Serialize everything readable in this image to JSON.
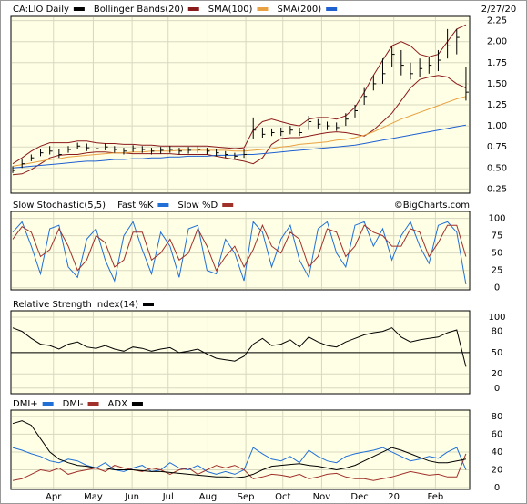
{
  "chart_data": [
    {
      "type": "ohlc",
      "title": "CA:LIO Daily",
      "color": "#000000",
      "date": "2/27/20",
      "high": [
        0.52,
        0.6,
        0.66,
        0.72,
        0.76,
        0.72,
        0.76,
        0.8,
        0.79,
        0.77,
        0.79,
        0.76,
        0.74,
        0.77,
        0.76,
        0.74,
        0.75,
        0.76,
        0.74,
        0.75,
        0.76,
        0.74,
        0.72,
        0.7,
        0.68,
        0.72,
        1.1,
        0.98,
        0.97,
        0.98,
        1.0,
        0.98,
        1.12,
        1.08,
        1.05,
        1.04,
        1.15,
        1.25,
        1.45,
        1.6,
        1.8,
        1.95,
        1.9,
        1.75,
        1.8,
        1.82,
        1.9,
        2.15,
        2.15,
        1.7
      ],
      "low": [
        0.44,
        0.5,
        0.58,
        0.64,
        0.66,
        0.62,
        0.68,
        0.72,
        0.7,
        0.69,
        0.71,
        0.68,
        0.66,
        0.69,
        0.68,
        0.66,
        0.67,
        0.68,
        0.66,
        0.67,
        0.68,
        0.66,
        0.64,
        0.62,
        0.6,
        0.62,
        0.85,
        0.86,
        0.88,
        0.88,
        0.9,
        0.88,
        0.95,
        0.97,
        0.95,
        0.94,
        1.0,
        1.1,
        1.25,
        1.42,
        1.5,
        1.7,
        1.6,
        1.55,
        1.58,
        1.62,
        1.65,
        1.8,
        1.85,
        1.3
      ],
      "close": [
        0.47,
        0.55,
        0.62,
        0.68,
        0.7,
        0.66,
        0.72,
        0.76,
        0.74,
        0.73,
        0.75,
        0.72,
        0.7,
        0.73,
        0.72,
        0.7,
        0.71,
        0.72,
        0.7,
        0.71,
        0.72,
        0.7,
        0.68,
        0.66,
        0.64,
        0.66,
        0.95,
        0.9,
        0.92,
        0.93,
        0.95,
        0.92,
        1.05,
        1.02,
        1.0,
        0.98,
        1.08,
        1.18,
        1.35,
        1.5,
        1.62,
        1.85,
        1.72,
        1.62,
        1.68,
        1.72,
        1.78,
        1.95,
        2.05,
        1.4
      ],
      "series": [
        {
          "name": "Bollinger Bands(20)",
          "color": "#8b1a1a",
          "upper": [
            0.55,
            0.62,
            0.7,
            0.76,
            0.8,
            0.8,
            0.8,
            0.82,
            0.82,
            0.8,
            0.79,
            0.79,
            0.78,
            0.78,
            0.77,
            0.77,
            0.76,
            0.76,
            0.76,
            0.76,
            0.76,
            0.76,
            0.75,
            0.74,
            0.73,
            0.74,
            0.95,
            1.05,
            1.08,
            1.05,
            1.02,
            1.0,
            1.08,
            1.1,
            1.1,
            1.08,
            1.12,
            1.22,
            1.4,
            1.6,
            1.78,
            1.95,
            2.0,
            1.95,
            1.85,
            1.82,
            1.85,
            2.0,
            2.15,
            2.2
          ],
          "lower": [
            0.42,
            0.43,
            0.48,
            0.55,
            0.62,
            0.65,
            0.66,
            0.66,
            0.68,
            0.69,
            0.69,
            0.68,
            0.68,
            0.67,
            0.67,
            0.67,
            0.67,
            0.67,
            0.66,
            0.66,
            0.66,
            0.66,
            0.64,
            0.62,
            0.6,
            0.58,
            0.55,
            0.62,
            0.78,
            0.85,
            0.86,
            0.86,
            0.88,
            0.9,
            0.92,
            0.93,
            0.92,
            0.9,
            0.88,
            0.95,
            1.05,
            1.15,
            1.3,
            1.45,
            1.55,
            1.58,
            1.6,
            1.58,
            1.5,
            1.45
          ]
        },
        {
          "name": "SMA(100)",
          "color": "#e8a040",
          "values": [
            0.52,
            0.54,
            0.56,
            0.58,
            0.6,
            0.61,
            0.63,
            0.64,
            0.65,
            0.66,
            0.67,
            0.68,
            0.68,
            0.69,
            0.69,
            0.7,
            0.7,
            0.7,
            0.71,
            0.71,
            0.71,
            0.71,
            0.71,
            0.71,
            0.7,
            0.7,
            0.71,
            0.72,
            0.73,
            0.75,
            0.76,
            0.78,
            0.79,
            0.8,
            0.81,
            0.83,
            0.84,
            0.86,
            0.89,
            0.93,
            0.98,
            1.03,
            1.08,
            1.12,
            1.16,
            1.2,
            1.24,
            1.28,
            1.32,
            1.35
          ]
        },
        {
          "name": "SMA(200)",
          "color": "#1f60d0",
          "values": [
            0.5,
            0.51,
            0.52,
            0.53,
            0.54,
            0.55,
            0.56,
            0.57,
            0.58,
            0.58,
            0.59,
            0.6,
            0.6,
            0.61,
            0.61,
            0.62,
            0.62,
            0.63,
            0.63,
            0.64,
            0.64,
            0.64,
            0.65,
            0.65,
            0.65,
            0.66,
            0.66,
            0.67,
            0.68,
            0.69,
            0.7,
            0.71,
            0.72,
            0.73,
            0.74,
            0.75,
            0.76,
            0.77,
            0.79,
            0.81,
            0.83,
            0.85,
            0.87,
            0.89,
            0.91,
            0.93,
            0.95,
            0.97,
            0.99,
            1.01
          ]
        }
      ],
      "xlim": [
        -0.2,
        49.4
      ],
      "xticks": [
        4.4,
        8.7,
        12.9,
        16.8,
        21.1,
        25.2,
        29.2,
        33.4,
        37.5,
        41.2,
        45.7
      ],
      "ylim": [
        0.2,
        2.3
      ],
      "yticks": [
        0.25,
        {
          "value": 0.5,
          "label": "0.50"
        },
        0.75,
        {
          "value": 1,
          "label": "1.00"
        },
        1.25,
        {
          "value": 1.5,
          "label": "1.50"
        },
        1.75,
        {
          "value": 2,
          "label": "2.00"
        },
        2.25
      ]
    },
    {
      "type": "line",
      "title": "Slow Stochastic(5,5)",
      "source": "©BigCharts.com",
      "series": [
        {
          "name": "Fast %K",
          "color": "#1f6fd6",
          "values": [
            80,
            95,
            60,
            20,
            85,
            90,
            30,
            15,
            70,
            85,
            40,
            10,
            75,
            95,
            55,
            20,
            80,
            60,
            15,
            85,
            90,
            25,
            20,
            70,
            50,
            10,
            95,
            80,
            30,
            70,
            90,
            40,
            15,
            85,
            95,
            50,
            30,
            90,
            95,
            60,
            85,
            40,
            75,
            95,
            60,
            35,
            90,
            95,
            80,
            5
          ]
        },
        {
          "name": "Slow %D",
          "color": "#a0302a",
          "values": [
            70,
            88,
            80,
            45,
            55,
            85,
            60,
            25,
            40,
            75,
            65,
            30,
            40,
            80,
            80,
            40,
            50,
            70,
            40,
            50,
            85,
            60,
            25,
            45,
            60,
            30,
            55,
            90,
            60,
            50,
            80,
            70,
            30,
            45,
            85,
            80,
            45,
            60,
            90,
            80,
            75,
            60,
            60,
            85,
            80,
            45,
            65,
            90,
            90,
            45
          ]
        }
      ],
      "xlim": [
        -0.2,
        49.4
      ],
      "xticks": [
        4.4,
        8.7,
        12.9,
        16.8,
        21.1,
        25.2,
        29.2,
        33.4,
        37.5,
        41.2,
        45.7
      ],
      "ylim": [
        -3,
        110
      ],
      "yticks": [
        0,
        25,
        50,
        75,
        100
      ]
    },
    {
      "type": "line",
      "title": "Relative Strength Index(14)",
      "color": "#000000",
      "reference_line": 50,
      "values": [
        85,
        80,
        70,
        62,
        60,
        55,
        62,
        65,
        58,
        56,
        60,
        55,
        52,
        58,
        56,
        52,
        55,
        57,
        50,
        52,
        55,
        48,
        42,
        40,
        38,
        45,
        62,
        70,
        60,
        62,
        68,
        58,
        72,
        65,
        60,
        58,
        65,
        70,
        75,
        78,
        80,
        85,
        72,
        65,
        68,
        70,
        72,
        78,
        82,
        30
      ],
      "xlim": [
        -0.2,
        49.4
      ],
      "xticks": [
        4.4,
        8.7,
        12.9,
        16.8,
        21.1,
        25.2,
        29.2,
        33.4,
        37.5,
        41.2,
        45.7
      ],
      "ylim": [
        -8,
        109
      ],
      "yticks": [
        0,
        20,
        50,
        80,
        100
      ]
    },
    {
      "type": "line",
      "series": [
        {
          "name": "DMI+",
          "color": "#1f6fd6",
          "values": [
            45,
            42,
            38,
            35,
            30,
            28,
            32,
            30,
            25,
            22,
            28,
            20,
            18,
            22,
            25,
            18,
            20,
            28,
            22,
            20,
            25,
            18,
            15,
            18,
            15,
            20,
            45,
            38,
            32,
            30,
            35,
            28,
            42,
            35,
            30,
            28,
            35,
            38,
            40,
            42,
            45,
            40,
            35,
            30,
            32,
            35,
            33,
            40,
            45,
            20
          ]
        },
        {
          "name": "DMI-",
          "color": "#a0302a",
          "values": [
            8,
            10,
            15,
            20,
            18,
            22,
            15,
            18,
            20,
            22,
            18,
            25,
            22,
            20,
            18,
            22,
            20,
            15,
            20,
            22,
            15,
            20,
            25,
            22,
            25,
            20,
            10,
            12,
            15,
            14,
            12,
            15,
            10,
            12,
            15,
            16,
            12,
            10,
            10,
            8,
            10,
            12,
            15,
            18,
            16,
            14,
            15,
            12,
            12,
            38
          ]
        },
        {
          "name": "ADX",
          "color": "#000000",
          "values": [
            72,
            75,
            70,
            55,
            40,
            32,
            28,
            25,
            24,
            22,
            22,
            20,
            20,
            20,
            19,
            18,
            18,
            17,
            16,
            15,
            14,
            13,
            12,
            12,
            11,
            12,
            15,
            20,
            24,
            25,
            26,
            27,
            25,
            24,
            22,
            20,
            22,
            25,
            30,
            35,
            40,
            45,
            42,
            38,
            34,
            30,
            28,
            28,
            30,
            32
          ]
        }
      ],
      "xlim": [
        -0.2,
        49.4
      ],
      "xticks": [
        {
          "value": 4.4,
          "label": "Apr"
        },
        {
          "value": 8.7,
          "label": "May"
        },
        {
          "value": 12.9,
          "label": "Jun"
        },
        {
          "value": 16.8,
          "label": "Jul"
        },
        {
          "value": 21.1,
          "label": "Aug"
        },
        {
          "value": 25.2,
          "label": "Sep"
        },
        {
          "value": 29.2,
          "label": "Oct"
        },
        {
          "value": 33.4,
          "label": "Nov"
        },
        {
          "value": 37.5,
          "label": "Dec"
        },
        {
          "value": 41.2,
          "label": "20"
        },
        {
          "value": 45.7,
          "label": "Feb"
        }
      ],
      "ylim": [
        -2,
        87
      ],
      "yticks": [
        0,
        20,
        40,
        60,
        80
      ]
    }
  ]
}
